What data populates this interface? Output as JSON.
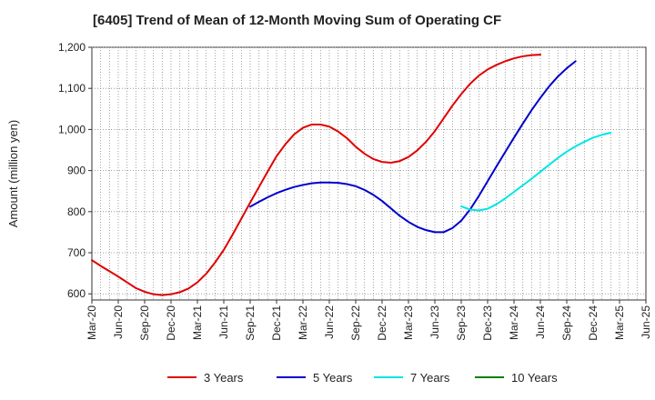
{
  "chart_data": {
    "type": "line",
    "title": "[6405]  Trend of Mean of 12-Month Moving Sum of Operating CF",
    "xlabel": "",
    "ylabel": "Amount (million yen)",
    "ylim": [
      585,
      1200
    ],
    "yticks": [
      600,
      700,
      800,
      900,
      1000,
      1100,
      1200
    ],
    "ytick_labels": [
      "600",
      "700",
      "800",
      "900",
      "1,000",
      "1,100",
      "1,200"
    ],
    "x_start": "Mar-20",
    "x_months_total": 63,
    "xtick_labels": [
      "Mar-20",
      "Jun-20",
      "Sep-20",
      "Dec-20",
      "Mar-21",
      "Jun-21",
      "Sep-21",
      "Dec-21",
      "Mar-22",
      "Jun-22",
      "Sep-22",
      "Dec-22",
      "Mar-23",
      "Jun-23",
      "Sep-23",
      "Dec-23",
      "Mar-24",
      "Jun-24",
      "Sep-24",
      "Dec-24",
      "Mar-25",
      "Jun-25"
    ],
    "grid": true,
    "legend_position": "bottom",
    "series": [
      {
        "name": "3 Years",
        "color": "#e00000",
        "start_month_index": 0,
        "values": [
          682,
          668,
          655,
          642,
          628,
          614,
          605,
          599,
          597,
          599,
          604,
          613,
          628,
          649,
          676,
          707,
          744,
          783,
          822,
          860,
          898,
          935,
          964,
          988,
          1004,
          1012,
          1012,
          1007,
          995,
          979,
          958,
          941,
          928,
          921,
          919,
          923,
          933,
          949,
          970,
          996,
          1027,
          1058,
          1086,
          1111,
          1131,
          1146,
          1157,
          1166,
          1173,
          1178,
          1181,
          1182
        ]
      },
      {
        "name": "5 Years",
        "color": "#0000cc",
        "start_month_index": 18,
        "values": [
          812,
          824,
          835,
          845,
          853,
          860,
          865,
          869,
          871,
          871,
          870,
          867,
          862,
          853,
          841,
          826,
          808,
          790,
          775,
          763,
          755,
          750,
          750,
          760,
          778,
          805,
          838,
          874,
          910,
          945,
          980,
          1014,
          1047,
          1077,
          1105,
          1129,
          1149,
          1166
        ]
      },
      {
        "name": "7 Years",
        "color": "#00e5e5",
        "start_month_index": 42,
        "values": [
          813,
          805,
          803,
          807,
          818,
          832,
          848,
          864,
          880,
          897,
          914,
          931,
          946,
          959,
          970,
          980,
          987,
          992
        ]
      },
      {
        "name": "10 Years",
        "color": "#008000",
        "start_month_index": 0,
        "values": []
      }
    ]
  }
}
